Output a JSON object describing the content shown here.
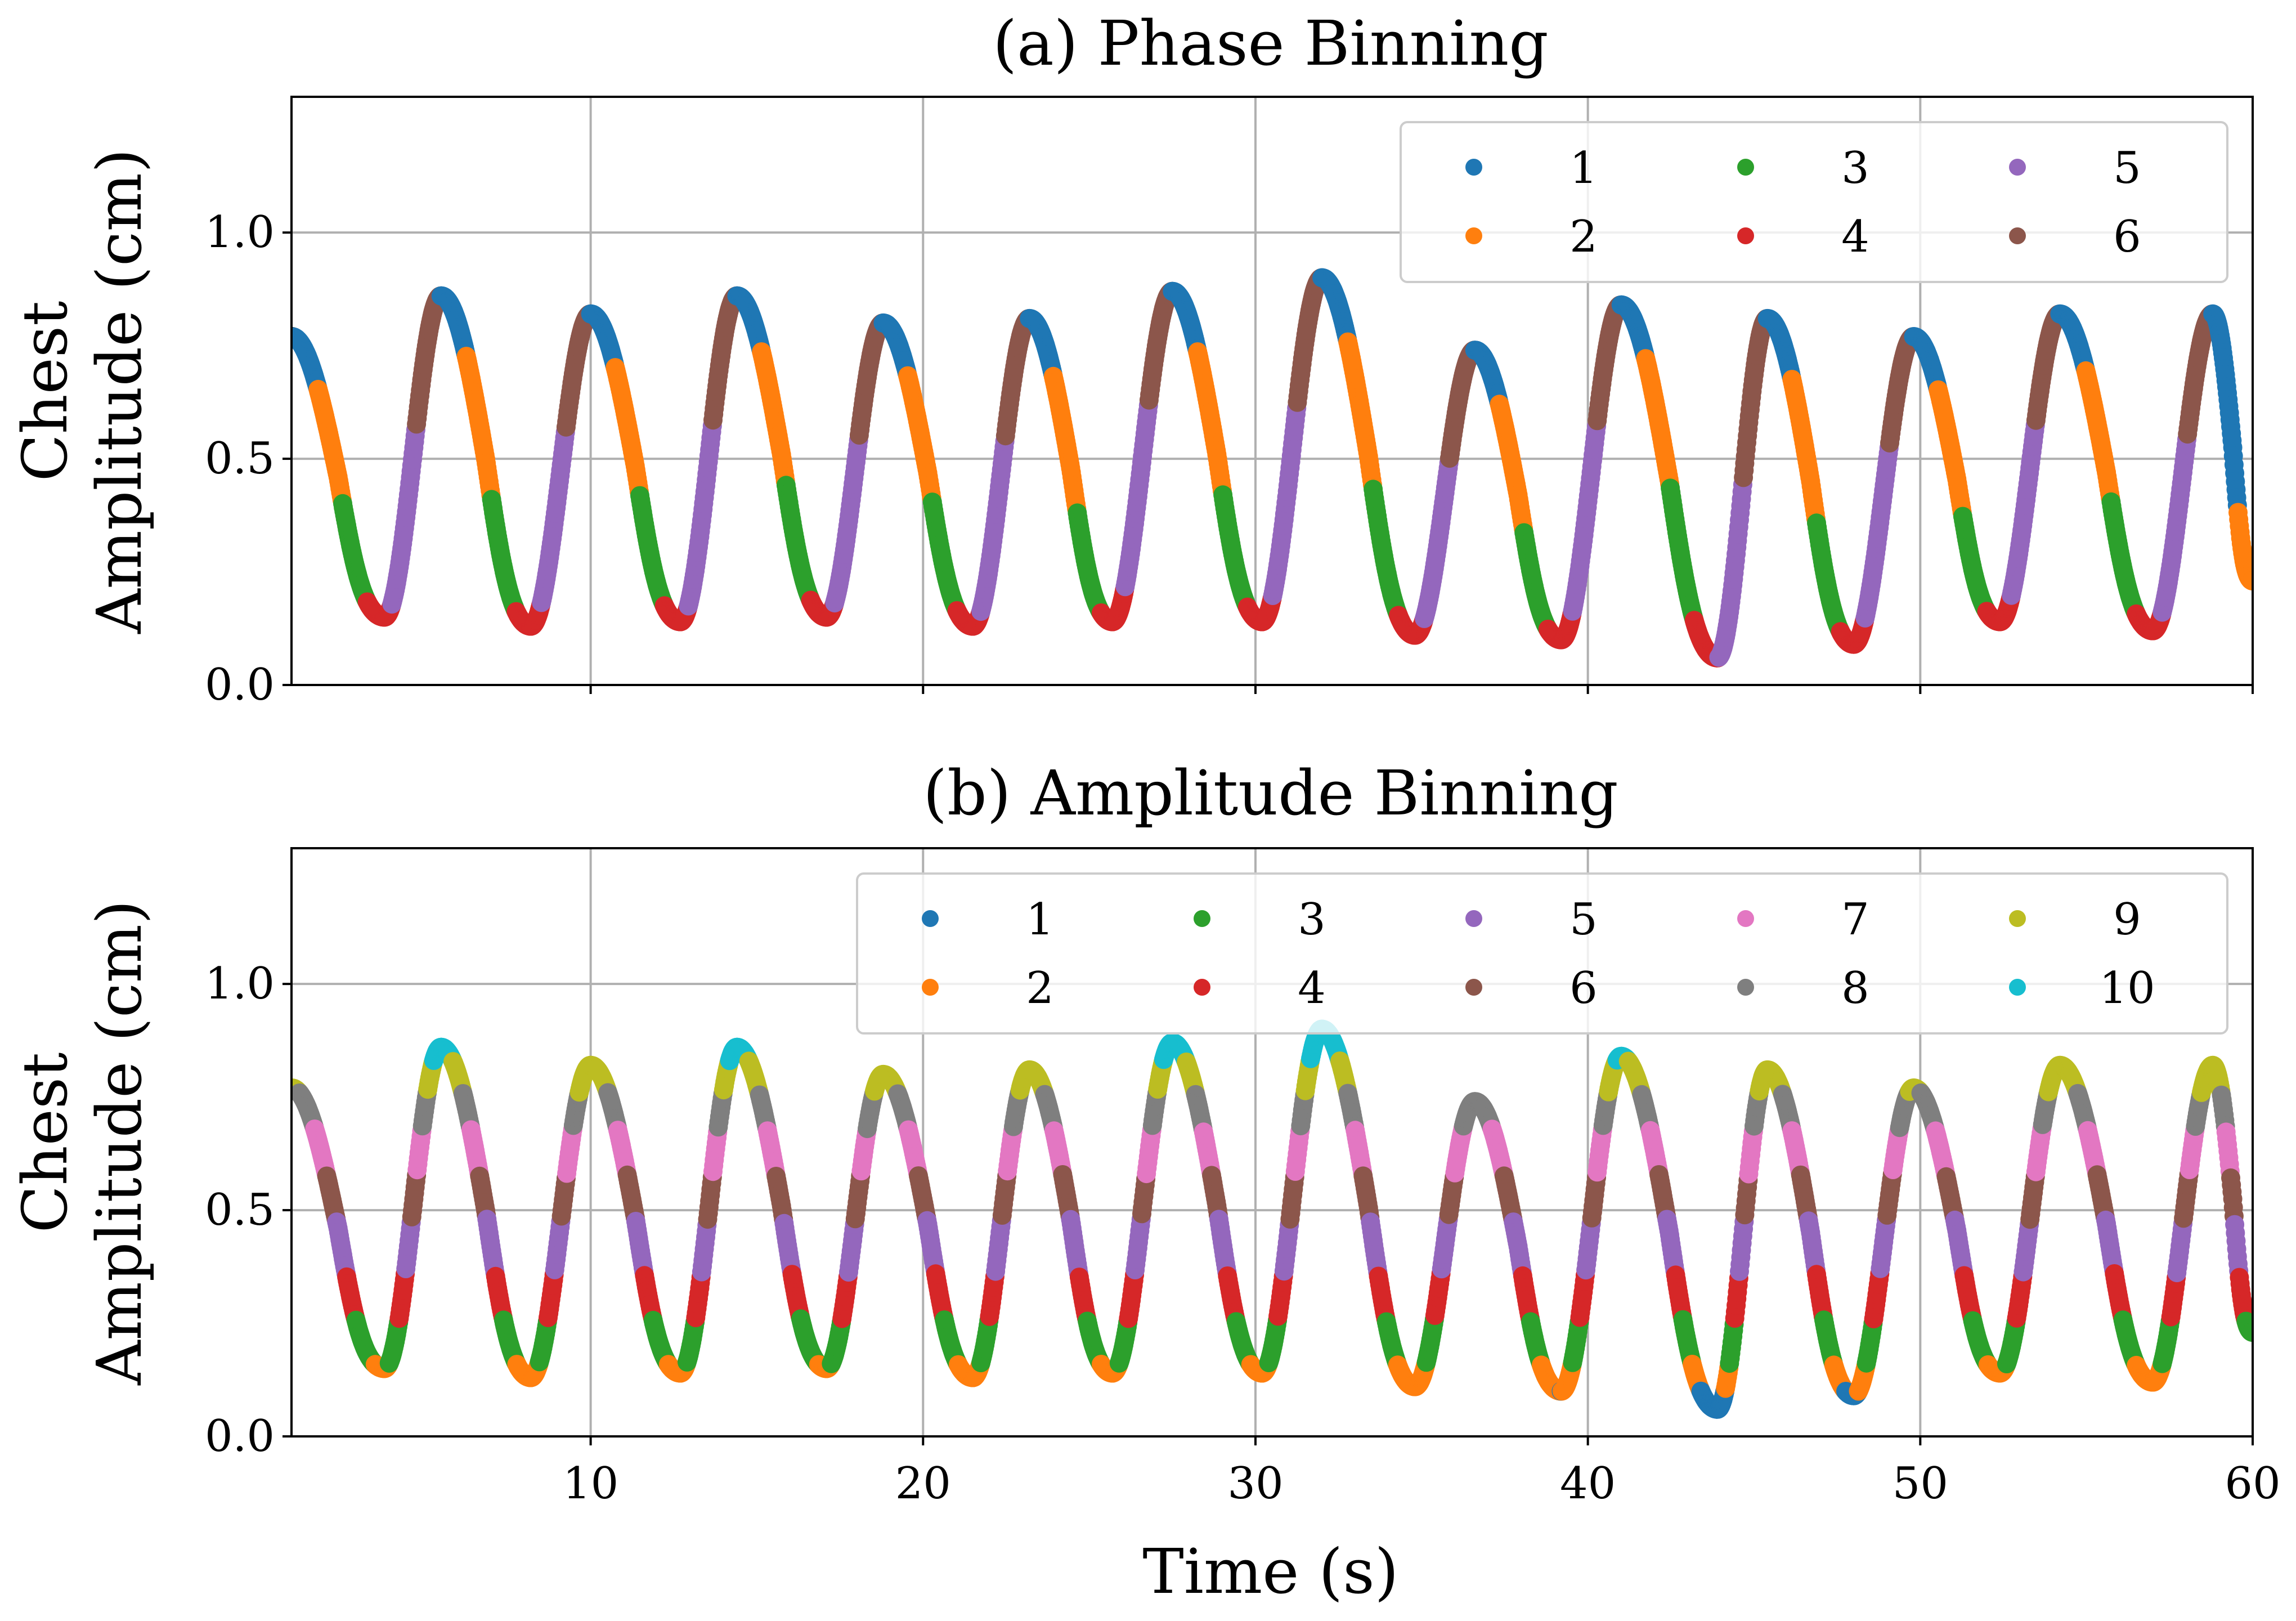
{
  "chart_data": [
    {
      "type": "scatter",
      "title": "(a) Phase Binning",
      "xlabel": "",
      "ylabel": "Chest\nAmplitude (cm)",
      "ylabel_lines": [
        "Chest",
        "Amplitude (cm)"
      ],
      "xlim": [
        1,
        60
      ],
      "ylim": [
        0,
        1.3
      ],
      "xticks": [
        10,
        20,
        30,
        40,
        50,
        60
      ],
      "xtick_labels_shown": false,
      "yticks": [
        0.0,
        0.5,
        1.0
      ],
      "ytick_labels": [
        "0.0",
        "0.5",
        "1.0"
      ],
      "grid": true,
      "legend_position": "top-right",
      "legend_columns": 3,
      "binning": "phase",
      "bins": 6,
      "legend": [
        {
          "label": "1",
          "color": "#1f77b4"
        },
        {
          "label": "2",
          "color": "#ff7f0e"
        },
        {
          "label": "3",
          "color": "#2ca02c"
        },
        {
          "label": "4",
          "color": "#d62728"
        },
        {
          "label": "5",
          "color": "#9467bd"
        },
        {
          "label": "6",
          "color": "#8c564b"
        }
      ]
    },
    {
      "type": "scatter",
      "title": "(b) Amplitude Binning",
      "xlabel": "Time (s)",
      "ylabel": "Chest\nAmplitude (cm)",
      "ylabel_lines": [
        "Chest",
        "Amplitude (cm)"
      ],
      "xlim": [
        1,
        60
      ],
      "ylim": [
        0,
        1.3
      ],
      "xticks": [
        10,
        20,
        30,
        40,
        50,
        60
      ],
      "xtick_labels": [
        "10",
        "20",
        "30",
        "40",
        "50",
        "60"
      ],
      "xtick_labels_shown": true,
      "yticks": [
        0.0,
        0.5,
        1.0
      ],
      "ytick_labels": [
        "0.0",
        "0.5",
        "1.0"
      ],
      "grid": true,
      "legend_position": "top-right",
      "legend_columns": 5,
      "binning": "amplitude",
      "bins": 10,
      "legend": [
        {
          "label": "1",
          "color": "#1f77b4"
        },
        {
          "label": "2",
          "color": "#ff7f0e"
        },
        {
          "label": "3",
          "color": "#2ca02c"
        },
        {
          "label": "4",
          "color": "#d62728"
        },
        {
          "label": "5",
          "color": "#9467bd"
        },
        {
          "label": "6",
          "color": "#8c564b"
        },
        {
          "label": "7",
          "color": "#e377c2"
        },
        {
          "label": "8",
          "color": "#7f7f7f"
        },
        {
          "label": "9",
          "color": "#bcbd22"
        },
        {
          "label": "10",
          "color": "#17becf"
        }
      ]
    }
  ],
  "signal": {
    "start": {
      "t": 1.0,
      "a": 0.77
    },
    "peaks": [
      {
        "t": 5.5,
        "a": 0.86
      },
      {
        "t": 10.0,
        "a": 0.82
      },
      {
        "t": 14.4,
        "a": 0.86
      },
      {
        "t": 18.8,
        "a": 0.8
      },
      {
        "t": 23.2,
        "a": 0.81
      },
      {
        "t": 27.5,
        "a": 0.87
      },
      {
        "t": 32.0,
        "a": 0.9
      },
      {
        "t": 36.6,
        "a": 0.74
      },
      {
        "t": 41.0,
        "a": 0.84
      },
      {
        "t": 45.4,
        "a": 0.81
      },
      {
        "t": 49.8,
        "a": 0.77
      },
      {
        "t": 54.2,
        "a": 0.82
      },
      {
        "t": 58.8,
        "a": 0.82
      }
    ],
    "troughs": [
      {
        "t": 3.8,
        "a": 0.15
      },
      {
        "t": 8.2,
        "a": 0.13
      },
      {
        "t": 12.7,
        "a": 0.14
      },
      {
        "t": 17.1,
        "a": 0.15
      },
      {
        "t": 21.5,
        "a": 0.13
      },
      {
        "t": 25.7,
        "a": 0.14
      },
      {
        "t": 30.2,
        "a": 0.14
      },
      {
        "t": 34.8,
        "a": 0.11
      },
      {
        "t": 39.2,
        "a": 0.1
      },
      {
        "t": 43.9,
        "a": 0.06
      },
      {
        "t": 48.0,
        "a": 0.09
      },
      {
        "t": 52.4,
        "a": 0.14
      },
      {
        "t": 57.0,
        "a": 0.12
      }
    ],
    "end": {
      "t": 60.0,
      "a": 0.23
    }
  }
}
